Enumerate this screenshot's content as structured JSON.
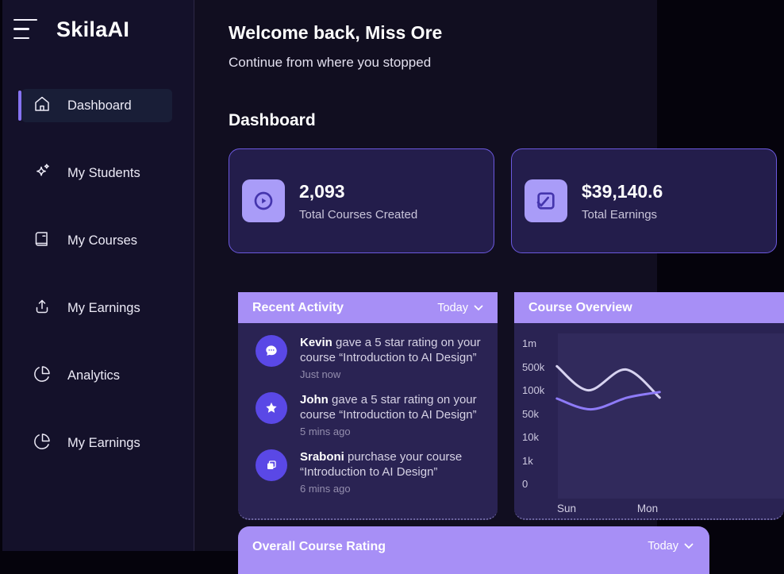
{
  "sidebar": {
    "brand": "SkilaAI",
    "items": [
      {
        "label": "Dashboard",
        "icon": "home-icon",
        "active": true
      },
      {
        "label": "My Students",
        "icon": "sparkles-icon",
        "active": false
      },
      {
        "label": "My Courses",
        "icon": "book-icon",
        "active": false
      },
      {
        "label": "My Earnings",
        "icon": "upload-icon",
        "active": false
      },
      {
        "label": "Analytics",
        "icon": "pie-chart-icon",
        "active": false
      },
      {
        "label": "My Earnings",
        "icon": "pie-chart-icon",
        "active": false
      }
    ]
  },
  "header": {
    "welcome": "Welcome back, Miss Ore",
    "subtitle": "Continue from where you stopped",
    "section_title": "Dashboard"
  },
  "stats": [
    {
      "value": "2,093",
      "label": "Total Courses Created",
      "icon": "play-circle-icon"
    },
    {
      "value": "$39,140.6",
      "label": "Total Earnings",
      "icon": "check-square-icon"
    }
  ],
  "recent_activity": {
    "title": "Recent Activity",
    "filter": "Today",
    "items": [
      {
        "name": "Kevin",
        "text": "gave a 5 star rating on your course “Introduction to AI Design”",
        "time": "Just now",
        "icon": "chat-icon"
      },
      {
        "name": "John",
        "text": "gave a 5 star rating on your course “Introduction to AI Design”",
        "time": "5 mins ago",
        "icon": "star-icon"
      },
      {
        "name": "Sraboni",
        "text": "purchase your course “Introduction to AI Design”",
        "time": "6 mins ago",
        "icon": "copy-icon"
      }
    ]
  },
  "course_overview": {
    "title": "Course Overview"
  },
  "chart_data": {
    "type": "line",
    "title": "Course Overview",
    "ylabel": "",
    "xlabel": "",
    "y_ticks": [
      "0",
      "1k",
      "10k",
      "50k",
      "100k",
      "500k",
      "1m"
    ],
    "y_tick_values": [
      0,
      1000,
      10000,
      50000,
      100000,
      500000,
      1000000
    ],
    "y_scale_note": "ticks equally spaced (non-linear axis)",
    "x_ticks": [
      "Sun",
      "Mon"
    ],
    "x_tick_days": [
      0,
      1
    ],
    "x_domain": [
      -0.12,
      1.15
    ],
    "grid": false,
    "legend": "none",
    "series": [
      {
        "name": "views-light",
        "color": "#d7d3f0",
        "points": [
          {
            "x": -0.12,
            "y": 520000
          },
          {
            "x": 0.27,
            "y": 105000
          },
          {
            "x": 0.73,
            "y": 460000
          },
          {
            "x": 1.15,
            "y": 85000
          }
        ]
      },
      {
        "name": "views-purple",
        "color": "#8e7bf8",
        "points": [
          {
            "x": -0.12,
            "y": 83000
          },
          {
            "x": 0.3,
            "y": 60000
          },
          {
            "x": 0.75,
            "y": 85000
          },
          {
            "x": 1.15,
            "y": 97000
          }
        ]
      }
    ]
  },
  "bottom_panel": {
    "title": "Overall Course Rating",
    "filter": "Today"
  },
  "colors": {
    "accent_purple": "#a78ff6",
    "card_border": "#6c59df",
    "card_bg": "#231d4b",
    "panel_bg": "#2a2353",
    "avatar_bg": "#5a48e6",
    "tile_bg": "#a99cf8",
    "sidebar_bg": "#14112a",
    "main_bg": "#110e20"
  }
}
